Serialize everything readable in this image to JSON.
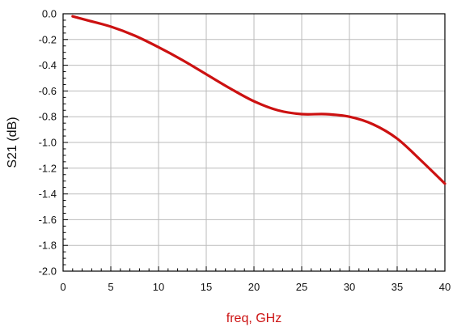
{
  "chart_data": {
    "type": "line",
    "title": "",
    "xlabel": "freq, GHz",
    "ylabel": "S21 (dB)",
    "xlim": [
      0,
      40
    ],
    "ylim": [
      -2.0,
      0.0
    ],
    "x_ticks": [
      0,
      5,
      10,
      15,
      20,
      25,
      30,
      35,
      40
    ],
    "y_ticks": [
      0.0,
      -0.2,
      -0.4,
      -0.6,
      -0.8,
      -1.0,
      -1.2,
      -1.4,
      -1.6,
      -1.8,
      -2.0
    ],
    "x_tick_labels": [
      "0",
      "5",
      "10",
      "15",
      "20",
      "25",
      "30",
      "35",
      "40"
    ],
    "y_tick_labels": [
      "0.0",
      "-0.2",
      "-0.4",
      "-0.6",
      "-0.8",
      "-1.0",
      "-1.2",
      "-1.4",
      "-1.6",
      "-1.8",
      "-2.0"
    ],
    "grid": true,
    "series": [
      {
        "color": "#cc1111",
        "x": [
          1,
          2.5,
          5,
          7.5,
          10,
          12.5,
          15,
          17.5,
          20,
          22.5,
          25,
          27.5,
          30,
          32.5,
          35,
          37.5,
          40
        ],
        "y": [
          -0.02,
          -0.05,
          -0.1,
          -0.17,
          -0.26,
          -0.36,
          -0.47,
          -0.58,
          -0.68,
          -0.75,
          -0.78,
          -0.78,
          -0.8,
          -0.86,
          -0.97,
          -1.14,
          -1.32
        ]
      }
    ],
    "colors": {
      "line": "#cc1111",
      "xlabel": "#cc1111",
      "ylabel": "#111111",
      "grid": "#bbbbbb",
      "axis": "#000000"
    }
  }
}
